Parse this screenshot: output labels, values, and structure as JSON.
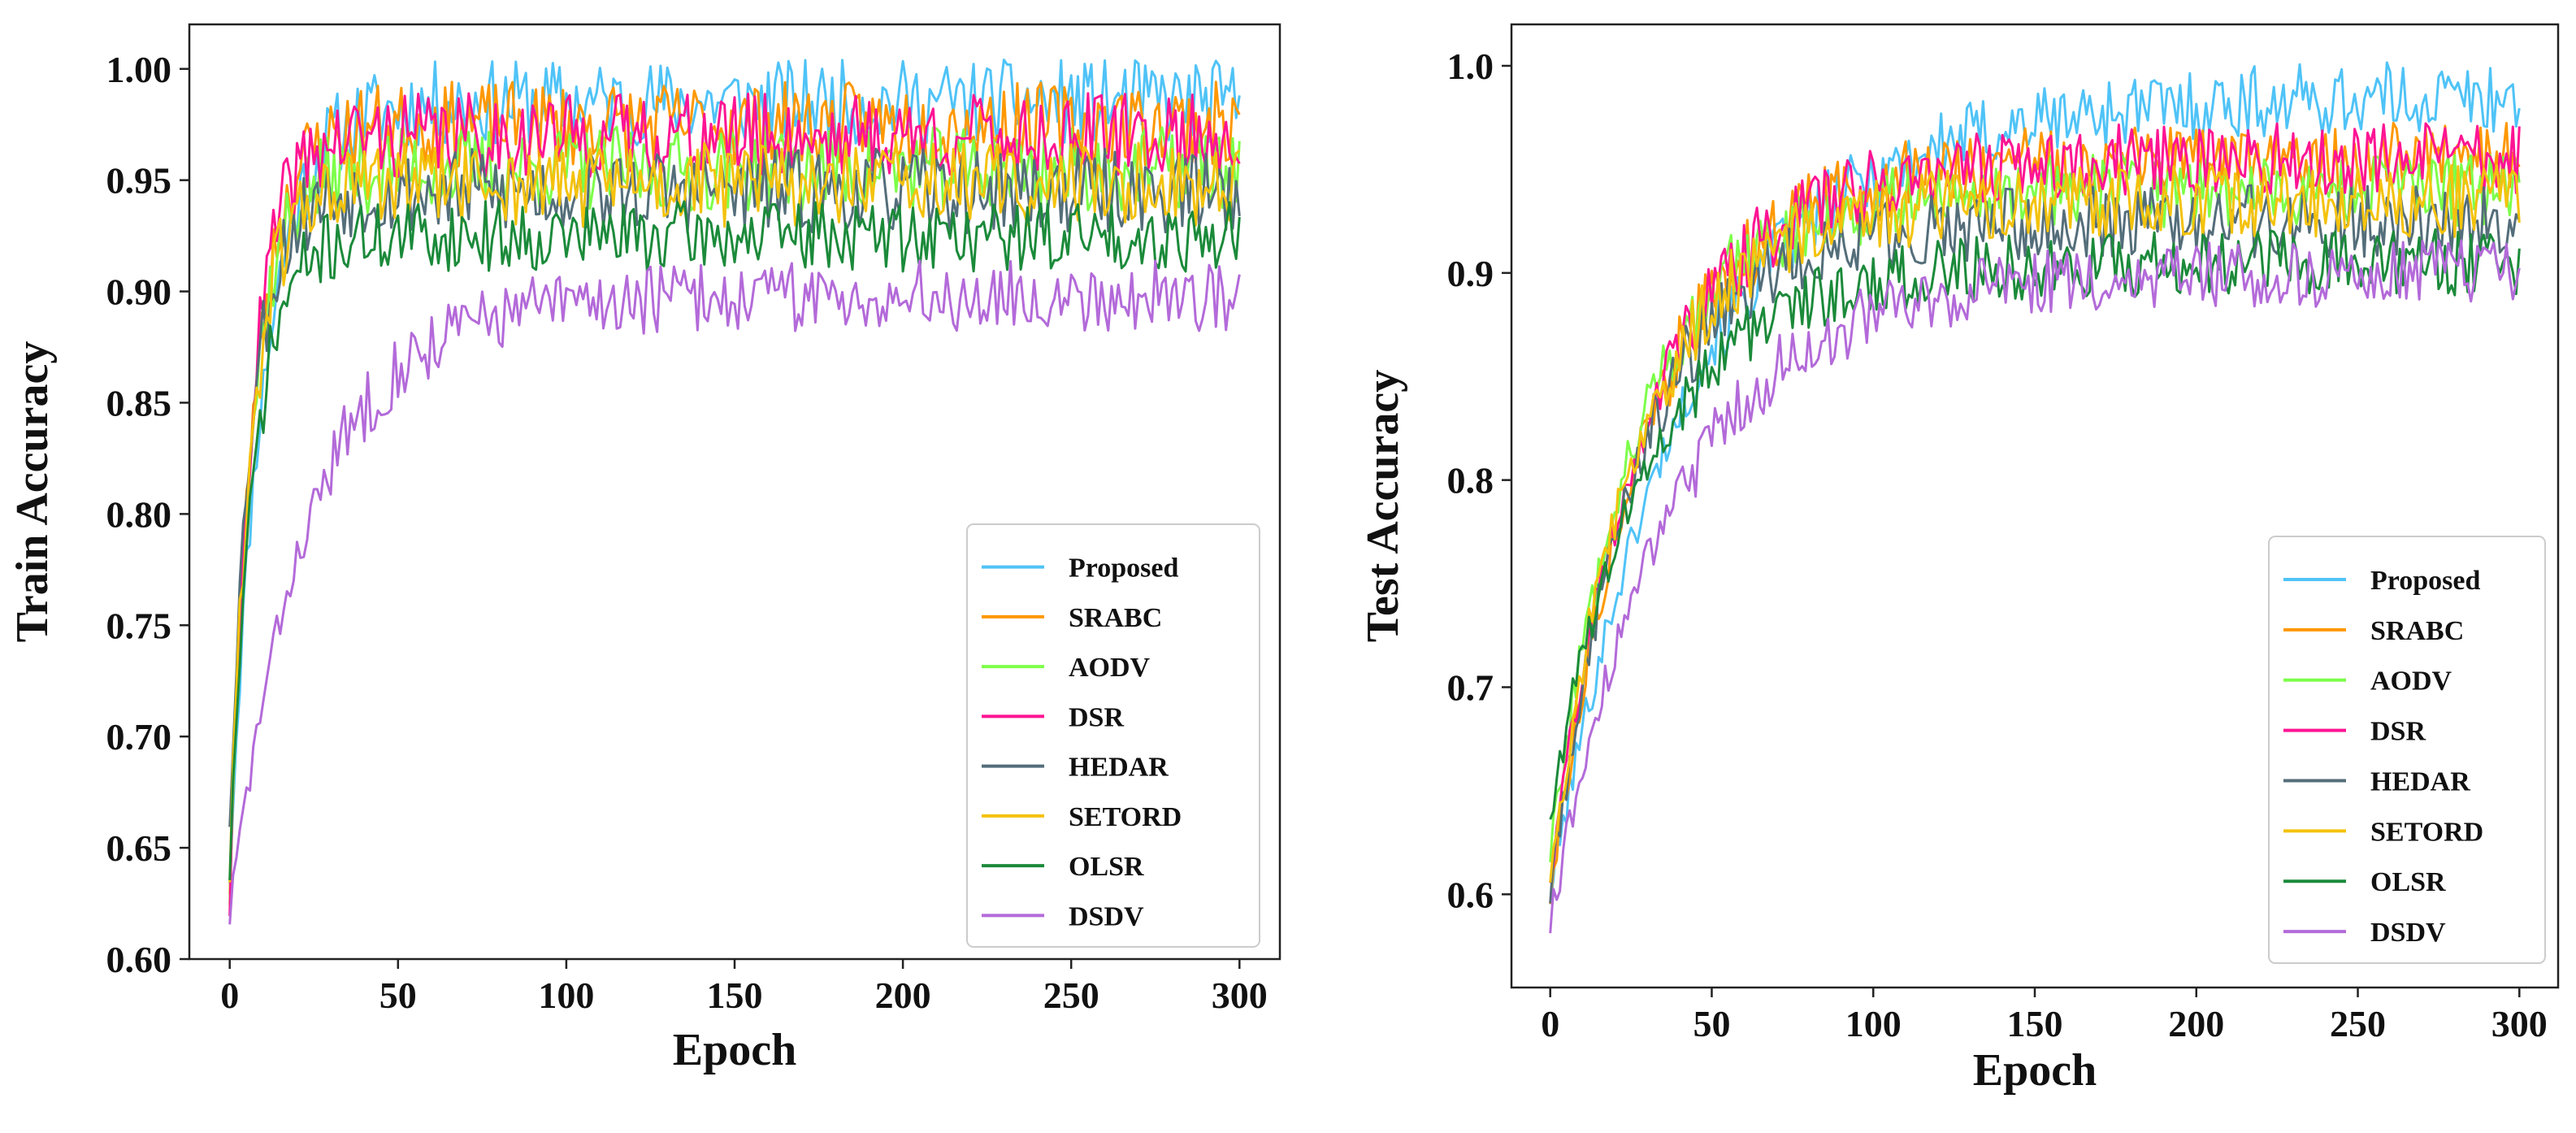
{
  "chart_data": [
    {
      "type": "line",
      "title": "",
      "xlabel": "Epoch",
      "ylabel": "Train Accuracy",
      "xlim": [
        -12,
        312
      ],
      "ylim": [
        0.6,
        1.02
      ],
      "xticks": [
        0,
        50,
        100,
        150,
        200,
        250,
        300
      ],
      "xtick_labels": [
        "0",
        "50",
        "100",
        "150",
        "200",
        "250",
        "300"
      ],
      "yticks": [
        0.6,
        0.65,
        0.7,
        0.75,
        0.8,
        0.85,
        0.9,
        0.95,
        1.0
      ],
      "ytick_labels": [
        "0.60",
        "0.65",
        "0.70",
        "0.75",
        "0.80",
        "0.85",
        "0.90",
        "0.95",
        "1.00"
      ],
      "legend_position": "bottom-right",
      "epochs": 300,
      "series": [
        {
          "name": "Proposed",
          "color": "#4fc3f7",
          "start": 0.64,
          "plateau": 0.985,
          "rise_epochs": 30,
          "noise": 0.012,
          "seed": 11
        },
        {
          "name": "SRABC",
          "color": "#ff9800",
          "start": 0.635,
          "plateau": 0.975,
          "rise_epochs": 22,
          "noise": 0.012,
          "seed": 23
        },
        {
          "name": "AODV",
          "color": "#7dff4a",
          "start": 0.63,
          "plateau": 0.955,
          "rise_epochs": 20,
          "noise": 0.012,
          "seed": 37
        },
        {
          "name": "DSR",
          "color": "#ff1493",
          "start": 0.625,
          "plateau": 0.97,
          "rise_epochs": 20,
          "noise": 0.012,
          "seed": 41
        },
        {
          "name": "HEDAR",
          "color": "#546e7a",
          "start": 0.665,
          "plateau": 0.945,
          "rise_epochs": 20,
          "noise": 0.012,
          "seed": 53
        },
        {
          "name": "SETORD",
          "color": "#f4c20d",
          "start": 0.64,
          "plateau": 0.948,
          "rise_epochs": 20,
          "noise": 0.012,
          "seed": 61
        },
        {
          "name": "OLSR",
          "color": "#1b8a3a",
          "start": 0.64,
          "plateau": 0.925,
          "rise_epochs": 22,
          "noise": 0.01,
          "seed": 71
        },
        {
          "name": "DSDV",
          "color": "#b36ad9",
          "start": 0.62,
          "plateau": 0.898,
          "rise_epochs": 70,
          "noise": 0.01,
          "seed": 83
        }
      ]
    },
    {
      "type": "line",
      "title": "",
      "xlabel": "Epoch",
      "ylabel": "Test Accuracy",
      "xlim": [
        -12,
        312
      ],
      "ylim": [
        0.555,
        1.02
      ],
      "xticks": [
        0,
        50,
        100,
        150,
        200,
        250,
        300
      ],
      "xtick_labels": [
        "0",
        "50",
        "100",
        "150",
        "200",
        "250",
        "300"
      ],
      "yticks": [
        0.6,
        0.7,
        0.8,
        0.9,
        1.0
      ],
      "ytick_labels": [
        "0.6",
        "0.7",
        "0.8",
        "0.9",
        "1.0"
      ],
      "legend_position": "bottom-right",
      "epochs": 300,
      "series": [
        {
          "name": "Proposed",
          "color": "#4fc3f7",
          "start": 0.6,
          "plateau": 0.985,
          "rise_epochs": 130,
          "noise": 0.011,
          "seed": 101
        },
        {
          "name": "SRABC",
          "color": "#ff9800",
          "start": 0.6,
          "plateau": 0.955,
          "rise_epochs": 90,
          "noise": 0.011,
          "seed": 113
        },
        {
          "name": "AODV",
          "color": "#7dff4a",
          "start": 0.62,
          "plateau": 0.94,
          "rise_epochs": 80,
          "noise": 0.011,
          "seed": 127
        },
        {
          "name": "DSR",
          "color": "#ff1493",
          "start": 0.61,
          "plateau": 0.955,
          "rise_epochs": 90,
          "noise": 0.011,
          "seed": 131
        },
        {
          "name": "HEDAR",
          "color": "#546e7a",
          "start": 0.6,
          "plateau": 0.925,
          "rise_epochs": 80,
          "noise": 0.011,
          "seed": 149
        },
        {
          "name": "SETORD",
          "color": "#f4c20d",
          "start": 0.61,
          "plateau": 0.935,
          "rise_epochs": 80,
          "noise": 0.011,
          "seed": 157
        },
        {
          "name": "OLSR",
          "color": "#1b8a3a",
          "start": 0.64,
          "plateau": 0.905,
          "rise_epochs": 90,
          "noise": 0.01,
          "seed": 163
        },
        {
          "name": "DSDV",
          "color": "#b36ad9",
          "start": 0.585,
          "plateau": 0.9,
          "rise_epochs": 110,
          "noise": 0.01,
          "seed": 173
        }
      ]
    }
  ]
}
